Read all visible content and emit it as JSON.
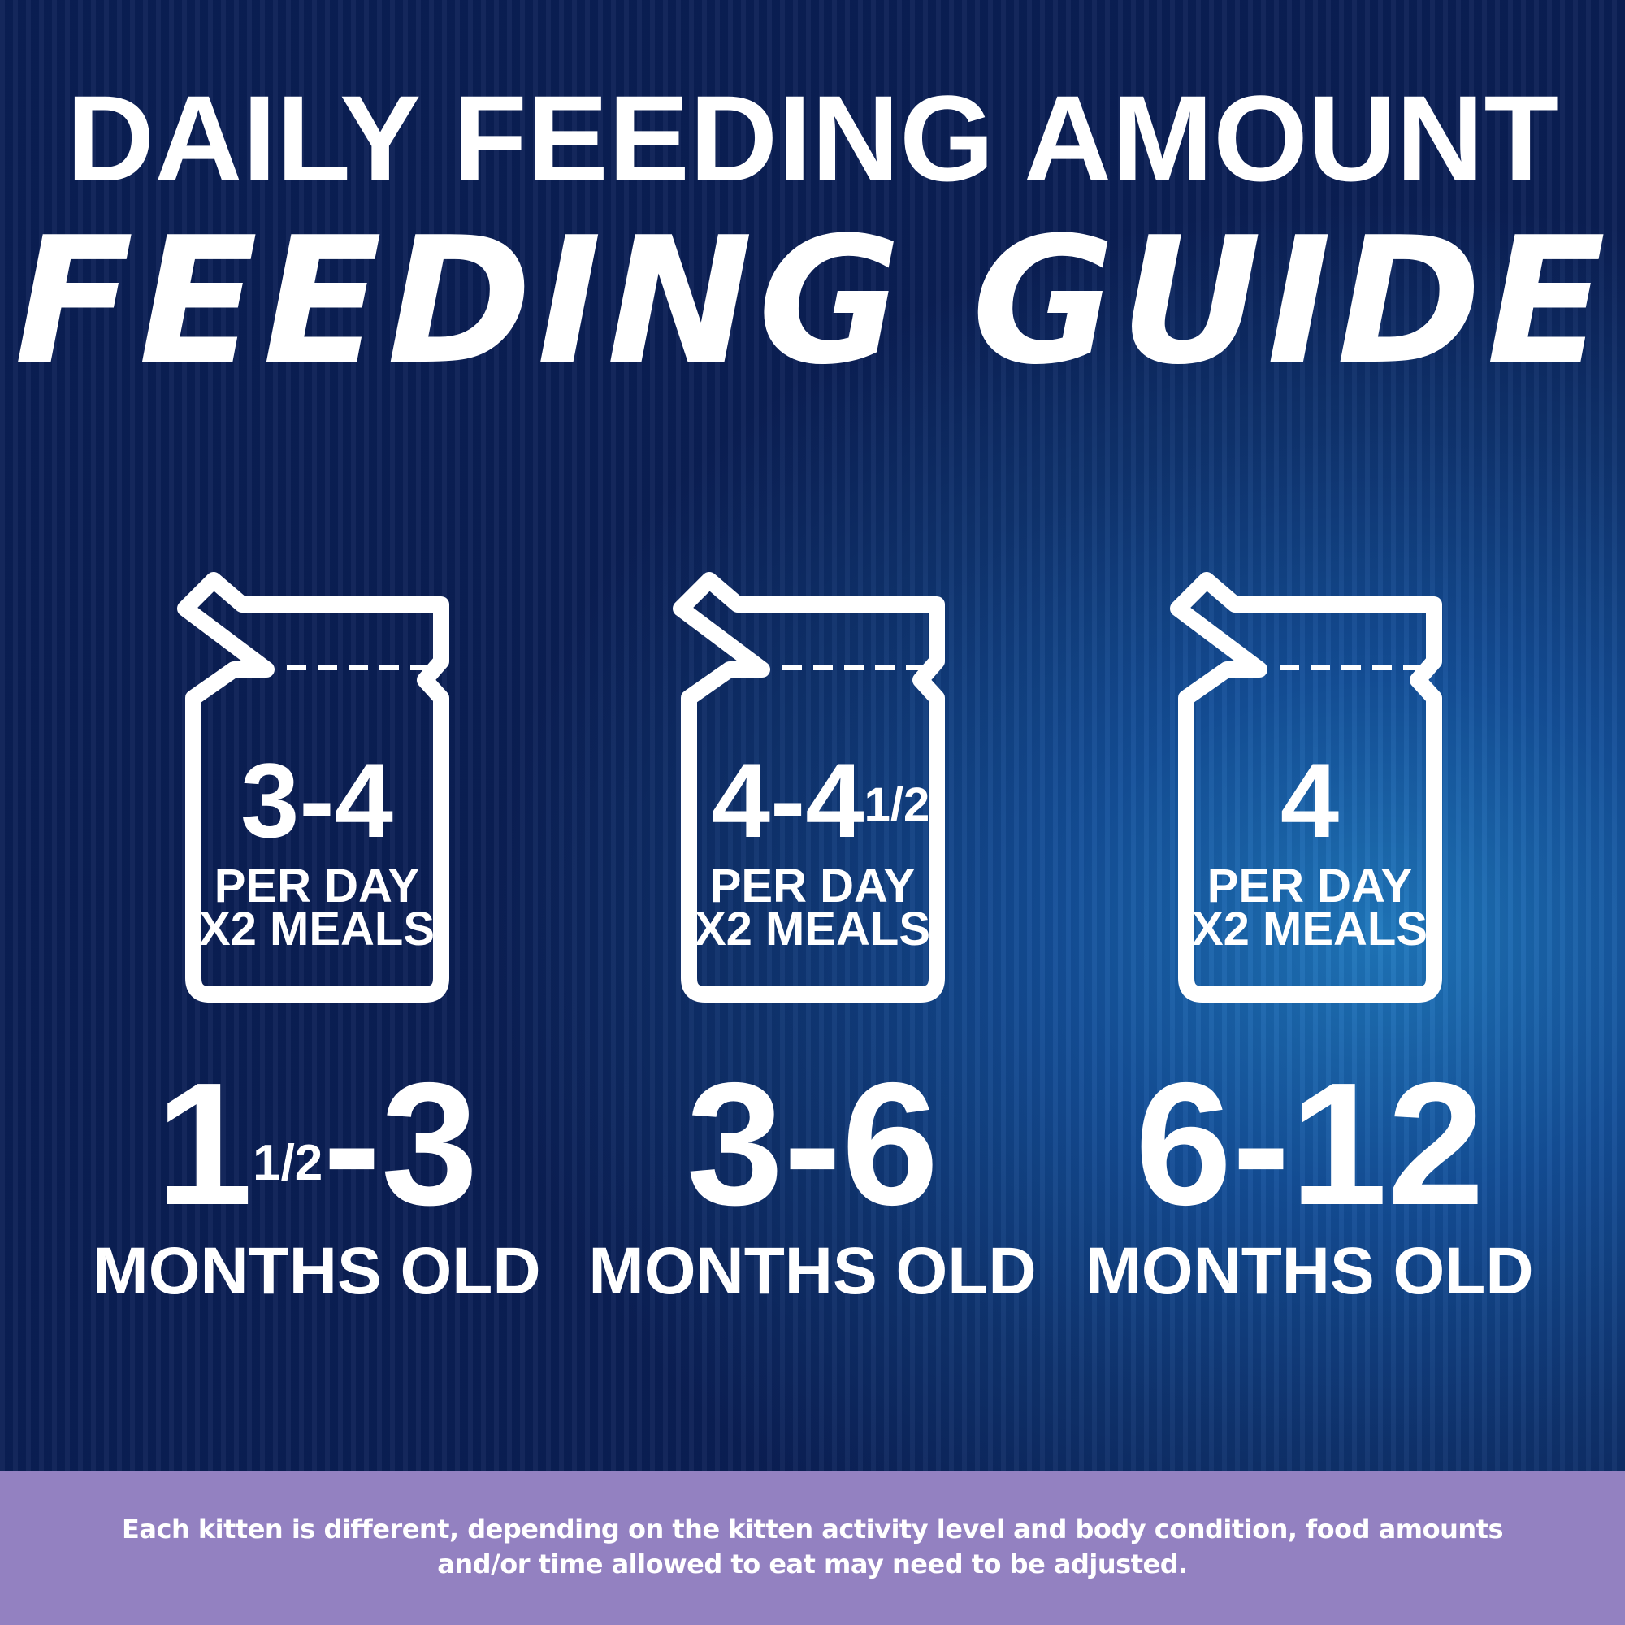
{
  "header": {
    "title": "DAILY FEEDING AMOUNT",
    "subtitle": "FEEDING GUIDE"
  },
  "cards": [
    {
      "amount": {
        "whole": "3-4"
      },
      "per_day": "PER DAY",
      "meals": "X2 MEALS",
      "age": {
        "whole": "1",
        "fraction": "1/2",
        "rest": "-3"
      },
      "age_unit": "MONTHS OLD"
    },
    {
      "amount": {
        "whole": "4-4",
        "fraction": "1/2"
      },
      "per_day": "PER DAY",
      "meals": "X2 MEALS",
      "age": {
        "whole": "3-6"
      },
      "age_unit": "MONTHS OLD"
    },
    {
      "amount": {
        "whole": "4"
      },
      "per_day": "PER DAY",
      "meals": "X2 MEALS",
      "age": {
        "whole": "6-12"
      },
      "age_unit": "MONTHS OLD"
    }
  ],
  "footer": {
    "note": "Each kitten is different, depending on the kitten activity level and body condition, food amounts and/or time allowed to eat may need to be adjusted."
  }
}
